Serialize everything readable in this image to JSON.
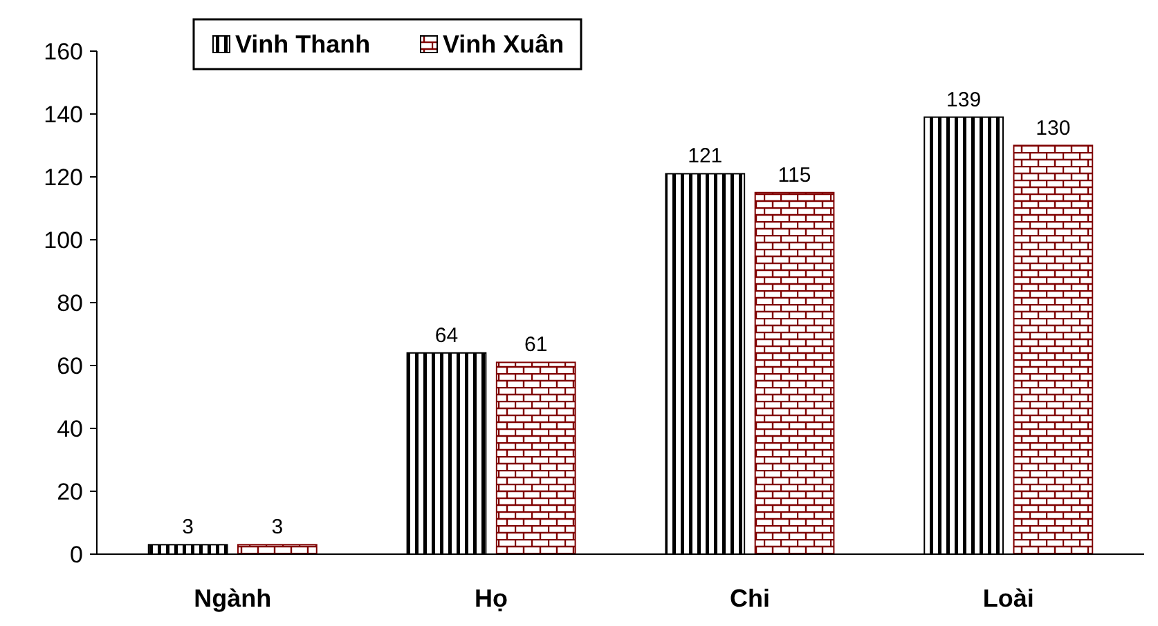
{
  "chart_data": {
    "type": "bar",
    "categories": [
      "Ngành",
      "Họ",
      "Chi",
      "Loài"
    ],
    "series": [
      {
        "name": "Vinh Thanh",
        "color": "#000000",
        "values": [
          3,
          64,
          121,
          139
        ]
      },
      {
        "name": "Vinh Xuân",
        "color": "#800000",
        "values": [
          3,
          61,
          115,
          130
        ]
      }
    ],
    "ylim": [
      0,
      160
    ],
    "yticks": [
      0,
      20,
      40,
      60,
      80,
      100,
      120,
      140,
      160
    ],
    "grid": false,
    "legend": "top left",
    "data_labels": true
  }
}
